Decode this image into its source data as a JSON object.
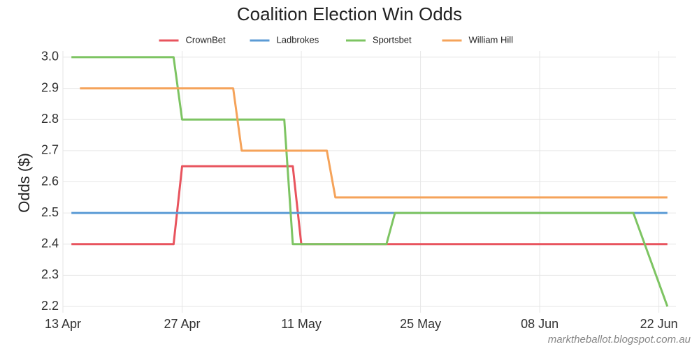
{
  "chart_data": {
    "type": "line",
    "title": "Coalition Election Win Odds",
    "y_label": "Odds ($)",
    "credit": "marktheballot.blogspot.com.au",
    "xlim": [
      "13 Apr",
      "24 Jun"
    ],
    "xticks": [
      "13 Apr",
      "27 Apr",
      "11 May",
      "25 May",
      "08 Jun",
      "22 Jun"
    ],
    "ylim": [
      2.18,
      3.02
    ],
    "yticks": [
      2.2,
      2.3,
      2.4,
      2.5,
      2.6,
      2.7,
      2.8,
      2.9,
      {
        "value": 3,
        "label": "3.0"
      }
    ],
    "grid": true,
    "legend": "top",
    "series": [
      {
        "name": "CrownBet",
        "color": "#e8545e",
        "x": [
          "14 Apr",
          "26 Apr",
          "27 Apr",
          "10 May",
          "11 May",
          "23 Jun"
        ],
        "values": [
          2.4,
          2.4,
          2.65,
          2.65,
          2.4,
          2.4
        ]
      },
      {
        "name": "Ladbrokes",
        "color": "#5b9bd5",
        "x": [
          "14 Apr",
          "23 Jun"
        ],
        "values": [
          2.5,
          2.5
        ]
      },
      {
        "name": "Sportsbet",
        "color": "#7dc462",
        "x": [
          "14 Apr",
          "26 Apr",
          "27 Apr",
          "9 May",
          "10 May",
          "21 May",
          "22 May",
          "19 Jun",
          "23 Jun"
        ],
        "values": [
          3.0,
          3.0,
          2.8,
          2.8,
          2.4,
          2.4,
          2.5,
          2.5,
          2.2
        ]
      },
      {
        "name": "William Hill",
        "color": "#f5a35a",
        "x": [
          "15 Apr",
          "3 May",
          "4 May",
          "14 May",
          "15 May",
          "23 Jun"
        ],
        "values": [
          2.9,
          2.9,
          2.7,
          2.7,
          2.55,
          2.55
        ]
      }
    ]
  }
}
